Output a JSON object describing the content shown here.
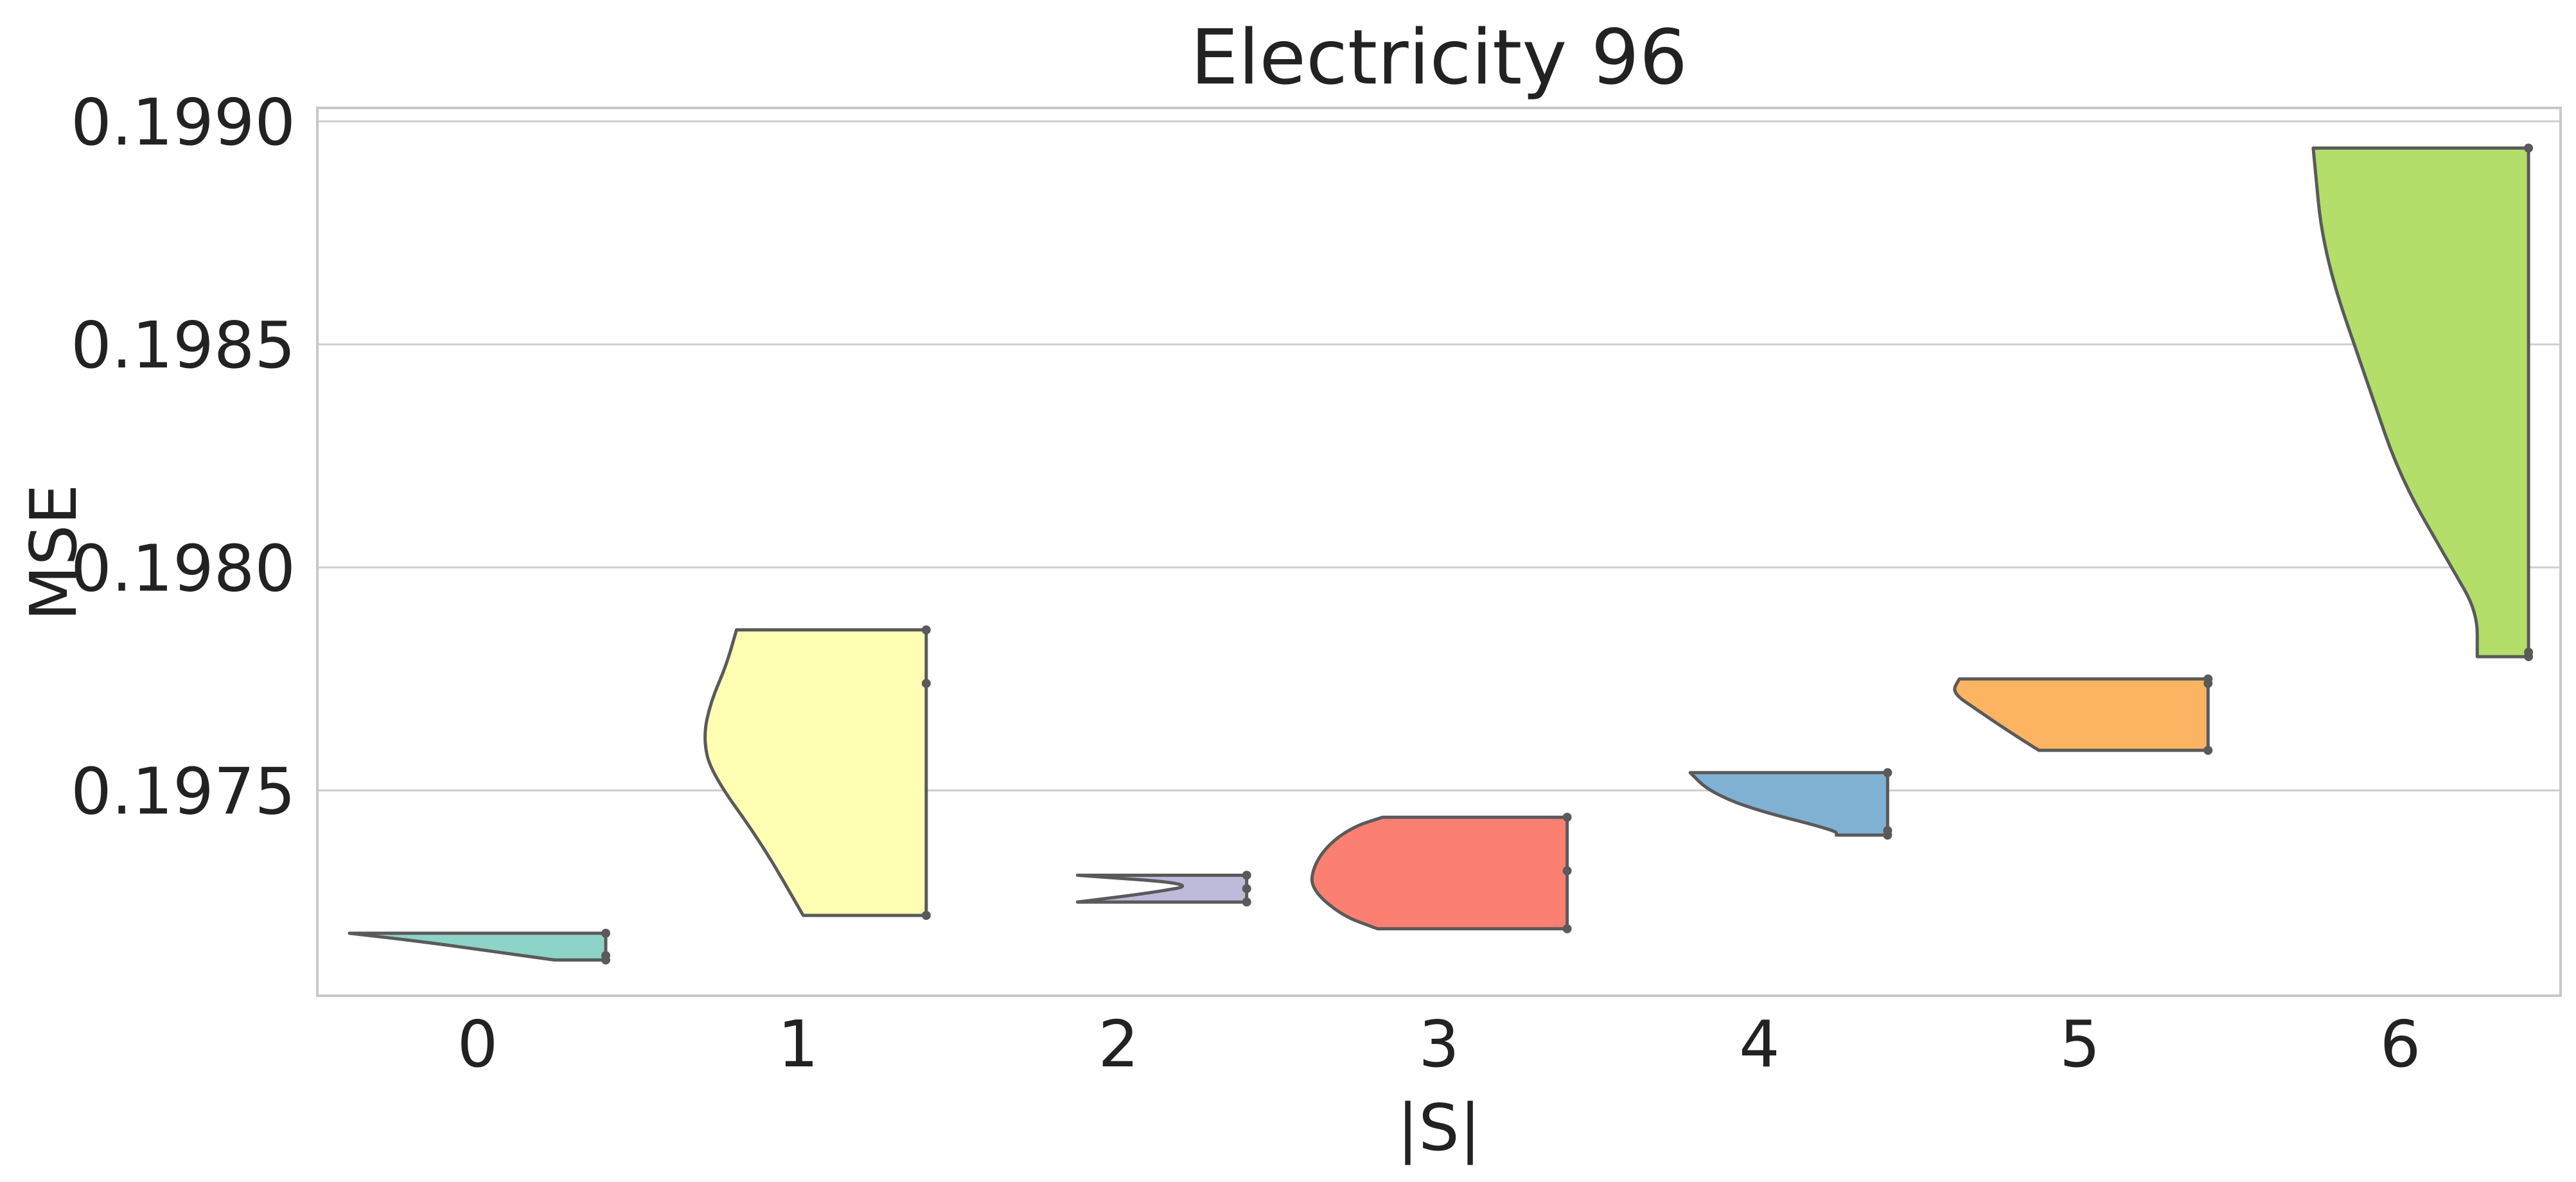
{
  "chart_data": {
    "type": "violin",
    "title": "Electricity 96",
    "xlabel": "|S|",
    "ylabel": "MSE",
    "categories": [
      "0",
      "1",
      "2",
      "3",
      "4",
      "5",
      "6"
    ],
    "ylim": [
      0.19704,
      0.19903
    ],
    "yticks": [
      0.1975,
      0.198,
      0.1985,
      0.199
    ],
    "ytick_labels": [
      "0.1975",
      "0.1980",
      "0.1985",
      "0.1990"
    ],
    "grid": true,
    "orientation": "half-violin (left side), observations marked at the right edge",
    "violins": [
      {
        "category": "0",
        "color": "#8dd3c7",
        "points": [
          0.19712,
          0.19713,
          0.19718
        ],
        "profile": [
          [
            0.19712,
            0.8
          ],
          [
            0.19714,
            0.55
          ],
          [
            0.19716,
            0.3
          ],
          [
            0.19718,
            0.0
          ]
        ]
      },
      {
        "category": "1",
        "color": "#ffffb3",
        "points": [
          0.19722,
          0.19774,
          0.19786
        ],
        "profile": [
          [
            0.19722,
            0.52
          ],
          [
            0.19738,
            0.36
          ],
          [
            0.19754,
            0.16
          ],
          [
            0.19762,
            0.13
          ],
          [
            0.1977,
            0.16
          ],
          [
            0.19778,
            0.22
          ],
          [
            0.19786,
            0.26
          ]
        ]
      },
      {
        "category": "2",
        "color": "#bebada",
        "points": [
          0.19725,
          0.19728,
          0.19731
        ],
        "profile": [
          [
            0.19725,
            0.34
          ],
          [
            0.19727,
            0.62
          ],
          [
            0.19729,
            0.82
          ],
          [
            0.19731,
            0.34
          ]
        ]
      },
      {
        "category": "3",
        "color": "#fb8072",
        "points": [
          0.19719,
          0.19732,
          0.19744
        ],
        "profile": [
          [
            0.19719,
            0.26
          ],
          [
            0.19722,
            0.12
          ],
          [
            0.19728,
            0.0
          ],
          [
            0.19733,
            0.01
          ],
          [
            0.19738,
            0.07
          ],
          [
            0.19742,
            0.17
          ],
          [
            0.19744,
            0.28
          ]
        ]
      },
      {
        "category": "4",
        "color": "#80b1d3",
        "points": [
          0.1974,
          0.19741,
          0.19754
        ],
        "profile": [
          [
            0.1974,
            0.8
          ],
          [
            0.19741,
            0.8
          ],
          [
            0.19746,
            0.46
          ],
          [
            0.1975,
            0.3
          ],
          [
            0.19754,
            0.23
          ]
        ]
      },
      {
        "category": "5",
        "color": "#fdb462",
        "points": [
          0.19759,
          0.19774,
          0.19775
        ],
        "profile": [
          [
            0.19759,
            0.34
          ],
          [
            0.19763,
            0.23
          ],
          [
            0.19768,
            0.1
          ],
          [
            0.19772,
            0.0
          ],
          [
            0.19775,
            0.03
          ]
        ]
      },
      {
        "category": "6",
        "color": "#b3de69",
        "points": [
          0.1978,
          0.19781,
          0.19894
        ],
        "profile": [
          [
            0.1978,
            0.8
          ],
          [
            0.1979,
            0.8
          ],
          [
            0.198,
            0.7
          ],
          [
            0.1982,
            0.5
          ],
          [
            0.1984,
            0.38
          ],
          [
            0.1987,
            0.2
          ],
          [
            0.19894,
            0.16
          ]
        ]
      }
    ]
  }
}
